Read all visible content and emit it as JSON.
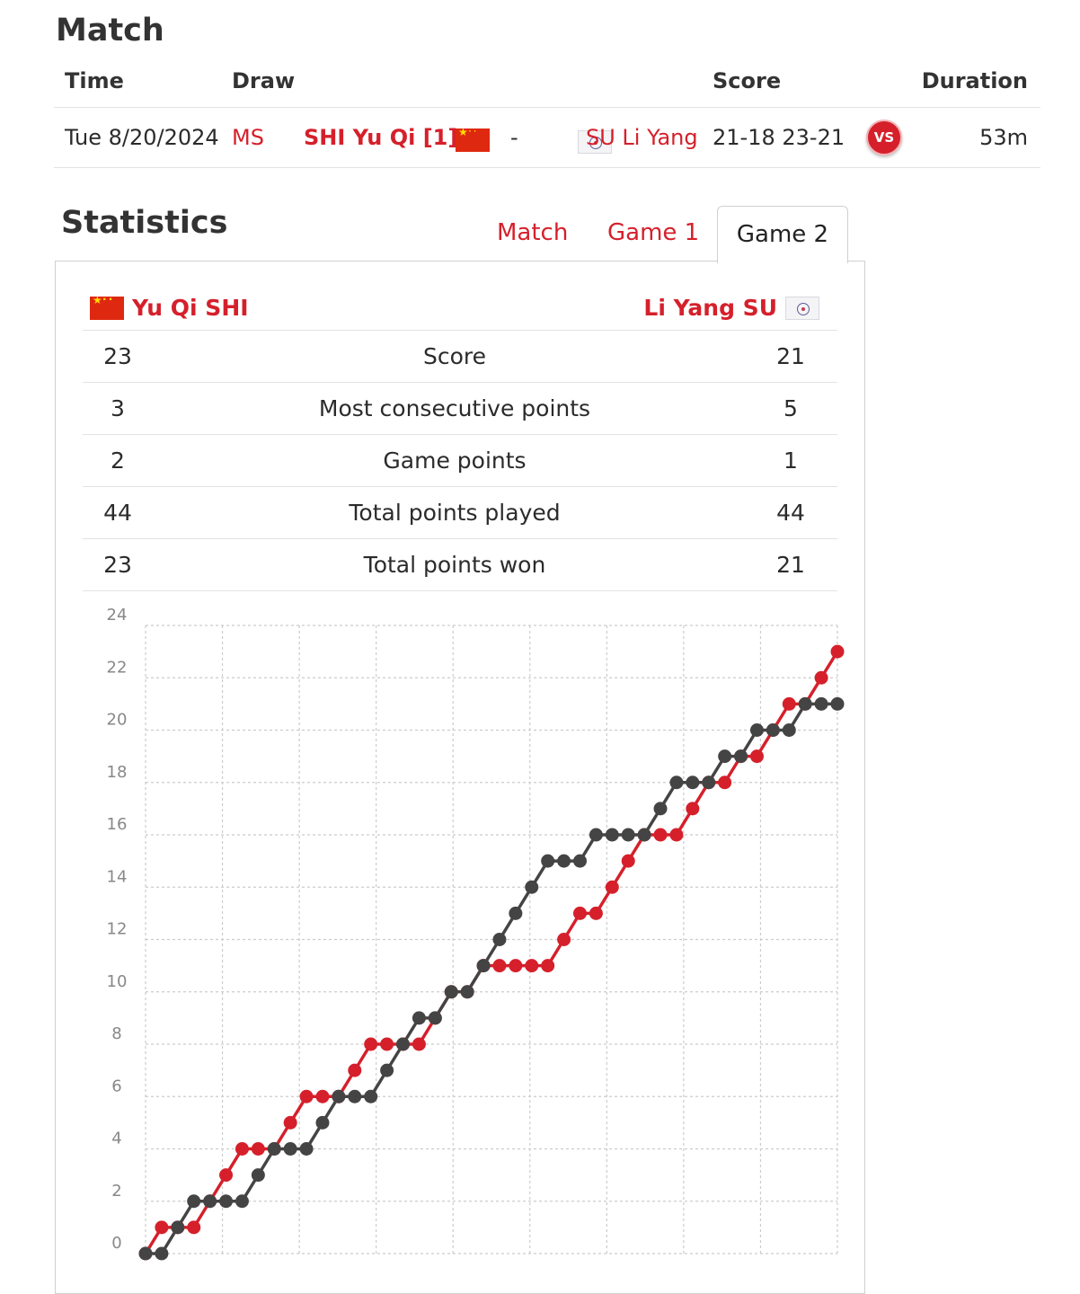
{
  "match": {
    "title": "Match",
    "headers": {
      "time": "Time",
      "draw": "Draw",
      "score": "Score",
      "duration": "Duration"
    },
    "row": {
      "time": "Tue 8/20/2024",
      "draw": "MS",
      "player1": "SHI Yu Qi [1]",
      "separator": "-",
      "player2": "SU Li Yang",
      "score": "21-18 23-21",
      "vs_label": "VS",
      "duration": "53m"
    }
  },
  "statistics": {
    "title": "Statistics",
    "tabs": [
      {
        "label": "Match",
        "active": false
      },
      {
        "label": "Game 1",
        "active": false
      },
      {
        "label": "Game 2",
        "active": true
      }
    ],
    "player1": "Yu Qi SHI",
    "player2": "Li Yang SU",
    "rows": [
      {
        "label": "Score",
        "p1": "23",
        "p2": "21"
      },
      {
        "label": "Most consecutive points",
        "p1": "3",
        "p2": "5"
      },
      {
        "label": "Game points",
        "p1": "2",
        "p2": "1"
      },
      {
        "label": "Total points played",
        "p1": "44",
        "p2": "44"
      },
      {
        "label": "Total points won",
        "p1": "23",
        "p2": "21"
      }
    ]
  },
  "colors": {
    "accent": "#d5202b",
    "series_dark": "#444444",
    "grid": "#cccccc"
  },
  "chart_data": {
    "type": "line",
    "ylim": [
      0,
      24
    ],
    "y_ticks": [
      0,
      2,
      4,
      6,
      8,
      10,
      12,
      14,
      16,
      18,
      20,
      22,
      24
    ],
    "grid": true,
    "series": [
      {
        "color": "#d5202b",
        "values": [
          0,
          1,
          1,
          1,
          2,
          3,
          4,
          4,
          4,
          5,
          6,
          6,
          6,
          7,
          8,
          8,
          8,
          8,
          9,
          10,
          10,
          11,
          11,
          11,
          11,
          11,
          12,
          13,
          13,
          14,
          15,
          16,
          16,
          16,
          17,
          18,
          18,
          19,
          19,
          20,
          21,
          21,
          22,
          23
        ]
      },
      {
        "color": "#444444",
        "values": [
          0,
          0,
          1,
          2,
          2,
          2,
          2,
          3,
          4,
          4,
          4,
          5,
          6,
          6,
          6,
          7,
          8,
          9,
          9,
          10,
          10,
          11,
          12,
          13,
          14,
          15,
          15,
          15,
          16,
          16,
          16,
          16,
          17,
          18,
          18,
          18,
          19,
          19,
          20,
          20,
          20,
          21,
          21,
          21
        ]
      }
    ]
  }
}
